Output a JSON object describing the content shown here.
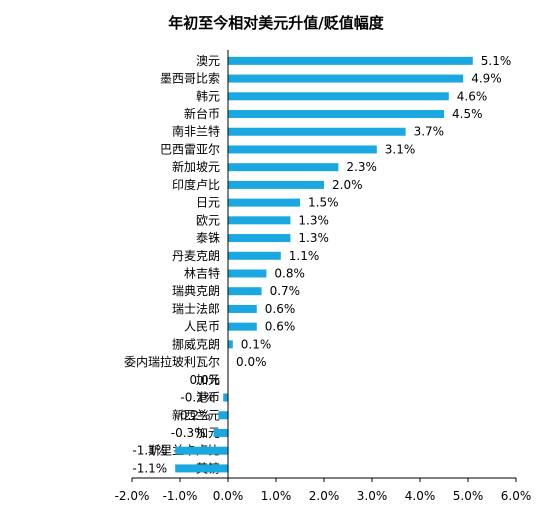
{
  "chart_data": {
    "type": "bar",
    "orientation": "horizontal",
    "title": "年初至今相对美元升值/贬值幅度",
    "xlabel": "",
    "ylabel": "",
    "bar_color": "#1BA8E0",
    "grid": false,
    "legend": "none",
    "xlim": [
      -2.0,
      6.0
    ],
    "xticks": [
      "-2.0%",
      "-1.0%",
      "0.0%",
      "1.0%",
      "2.0%",
      "3.0%",
      "4.0%",
      "5.0%",
      "6.0%"
    ],
    "categories": [
      "澳元",
      "墨西哥比索",
      "韩元",
      "新台币",
      "南非兰特",
      "巴西雷亚尔",
      "新加坡元",
      "印度卢比",
      "日元",
      "欧元",
      "泰铢",
      "丹麦克朗",
      "林吉特",
      "瑞典克朗",
      "瑞士法郎",
      "人民币",
      "挪威克朗",
      "委内瑞拉玻利瓦尔",
      "加元",
      "港币",
      "新西兰元",
      "加元",
      "斯里兰卡卢比",
      "英镑"
    ],
    "values": [
      5.1,
      4.9,
      4.6,
      4.5,
      3.7,
      3.1,
      2.3,
      2.0,
      1.5,
      1.3,
      1.3,
      1.1,
      0.8,
      0.7,
      0.6,
      0.6,
      0.1,
      0.0,
      0.0,
      -0.1,
      -0.2,
      -0.3,
      -1.1,
      -1.1
    ],
    "labels": [
      "5.1%",
      "4.9%",
      "4.6%",
      "4.5%",
      "3.7%",
      "3.1%",
      "2.3%",
      "2.0%",
      "1.5%",
      "1.3%",
      "1.3%",
      "1.1%",
      "0.8%",
      "0.7%",
      "0.6%",
      "0.6%",
      "0.1%",
      "0.0%",
      "0.0%",
      "-0.1%",
      "-0.2%",
      "-0.3%",
      "-1.1%",
      "-1.1%"
    ]
  }
}
